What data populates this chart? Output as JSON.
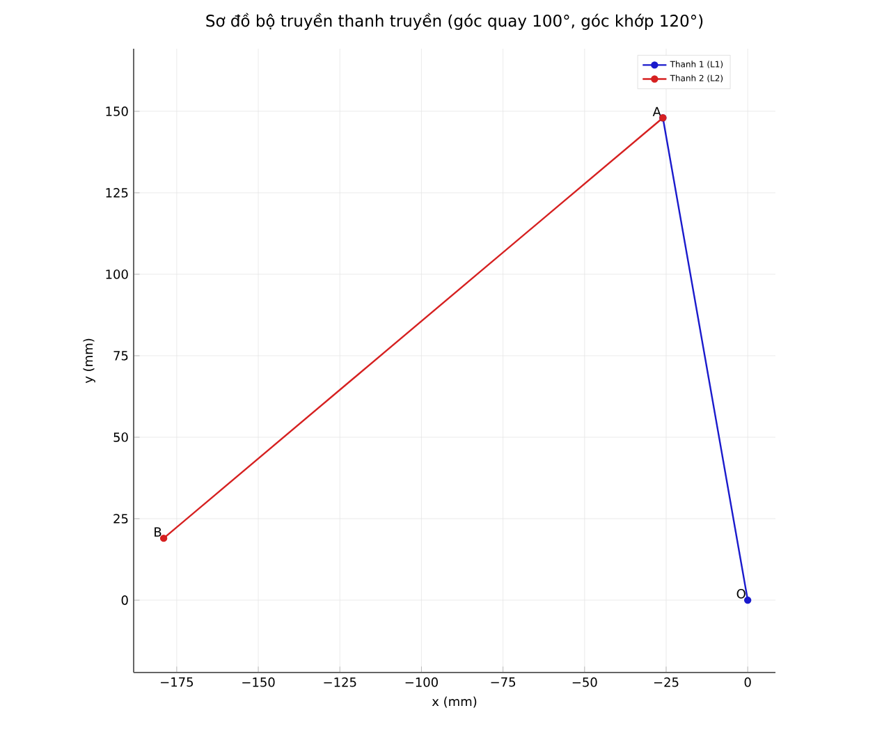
{
  "chart_data": {
    "type": "line",
    "title": "Sơ đồ bộ truyền thanh truyền (góc quay 100°, góc khớp 120°)",
    "xlabel": "x (mm)",
    "ylabel": "y (mm)",
    "series": [
      {
        "name": "Thanh 1 (L1)",
        "color": "#1a1acc",
        "x": [
          0,
          -26
        ],
        "values": [
          0,
          148
        ]
      },
      {
        "name": "Thanh 2 (L2)",
        "color": "#d62020",
        "x": [
          -26,
          -179
        ],
        "values": [
          148,
          19
        ]
      }
    ],
    "annotations": [
      {
        "text": "O",
        "x": 0,
        "y": 0
      },
      {
        "text": "A",
        "x": -26,
        "y": 148
      },
      {
        "text": "B",
        "x": -179,
        "y": 19
      }
    ],
    "xlim": [
      -188.2,
      8.5
    ],
    "ylim": [
      -22.2,
      169.2
    ],
    "xticks": [
      {
        "value": -175,
        "label": "−175"
      },
      {
        "value": -150,
        "label": "−150"
      },
      {
        "value": -125,
        "label": "−125"
      },
      {
        "value": -100,
        "label": "−100"
      },
      {
        "value": -75,
        "label": "−75"
      },
      {
        "value": -50,
        "label": "−50"
      },
      {
        "value": -25,
        "label": "−25"
      },
      0
    ],
    "yticks": [
      0,
      25,
      50,
      75,
      100,
      125,
      150
    ],
    "grid": true,
    "legend": "top right",
    "marker": "circle",
    "line_style": "solid"
  }
}
